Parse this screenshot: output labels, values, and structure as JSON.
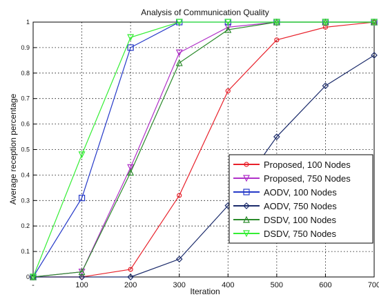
{
  "chart_data": {
    "type": "line",
    "title": "Analysis of Communication Quality",
    "xlabel": "Iteration",
    "ylabel": "Average reception percentage",
    "xlim": [
      0,
      700
    ],
    "ylim": [
      0,
      1
    ],
    "x": [
      0,
      100,
      200,
      300,
      400,
      500,
      600,
      700
    ],
    "x_tick_labels": [
      "-",
      "100",
      "200",
      "300",
      "400",
      "500",
      "600",
      "700"
    ],
    "y_ticks": [
      0,
      0.1,
      0.2,
      0.3,
      0.4,
      0.5,
      0.6,
      0.7,
      0.8,
      0.9,
      1
    ],
    "y_tick_labels": [
      "0",
      "0.1",
      "0.2",
      "0.3",
      "0.4",
      "0.5",
      "0.6",
      "0.7",
      "0.8",
      "0.9",
      "1"
    ],
    "grid": true,
    "legend_position": "bottom-right",
    "series": [
      {
        "name": "Proposed, 100 Nodes",
        "color": "#e8202a",
        "marker": "circle",
        "values": [
          0.0,
          0.0,
          0.03,
          0.32,
          0.73,
          0.93,
          0.98,
          1.0
        ]
      },
      {
        "name": "Proposed, 750 Nodes",
        "color": "#b030c8",
        "marker": "triangle-down",
        "values": [
          0.0,
          0.02,
          0.43,
          0.88,
          0.98,
          1.0,
          1.0,
          1.0
        ]
      },
      {
        "name": "AODV, 100 Nodes",
        "color": "#2438c8",
        "marker": "square",
        "values": [
          0.0,
          0.31,
          0.9,
          1.0,
          1.0,
          1.0,
          1.0,
          1.0
        ]
      },
      {
        "name": "AODV, 750 Nodes",
        "color": "#1a2a6a",
        "marker": "diamond",
        "values": [
          0.0,
          0.0,
          0.0,
          0.07,
          0.28,
          0.55,
          0.75,
          0.87
        ]
      },
      {
        "name": "DSDV, 100 Nodes",
        "color": "#2a8a2a",
        "marker": "triangle-up",
        "values": [
          0.0,
          0.02,
          0.41,
          0.84,
          0.97,
          1.0,
          1.0,
          1.0
        ]
      },
      {
        "name": "DSDV, 750 Nodes",
        "color": "#33ee33",
        "marker": "triangle-down",
        "values": [
          0.0,
          0.48,
          0.94,
          1.0,
          1.0,
          1.0,
          1.0,
          1.0
        ]
      }
    ]
  }
}
